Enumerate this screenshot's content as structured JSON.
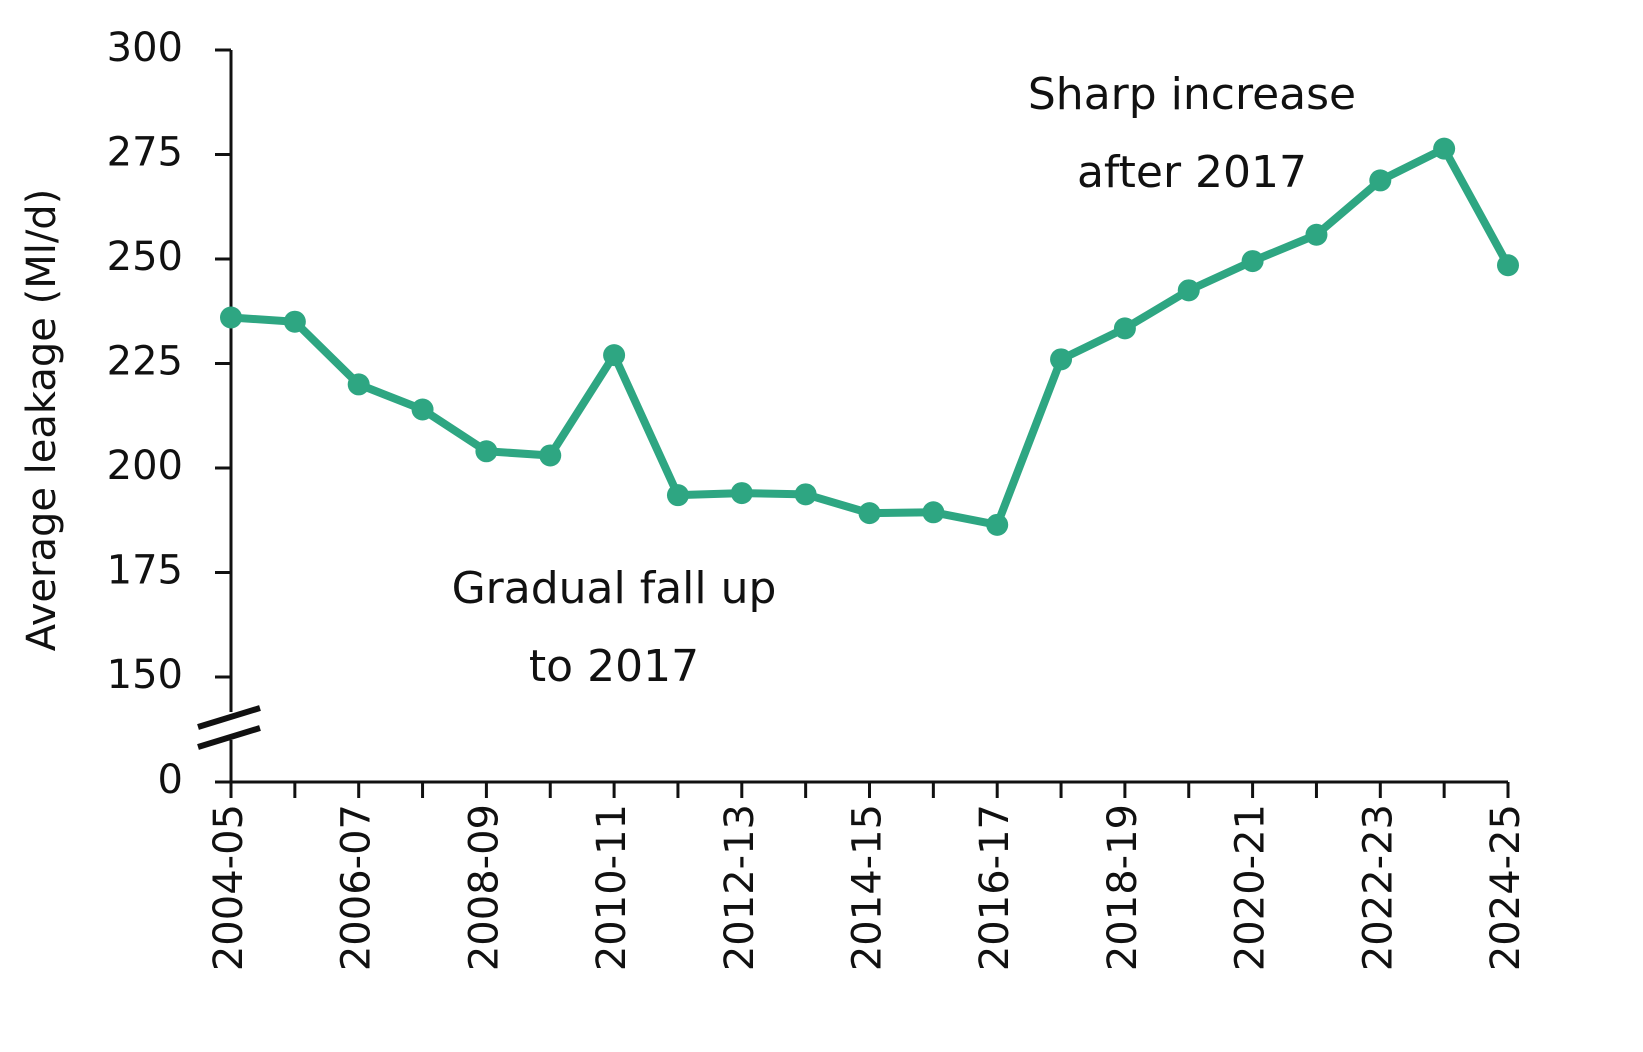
{
  "chart_data": {
    "type": "line",
    "y_label": "Average leakage (Ml/d)",
    "categories": [
      "2004-05",
      null,
      "2006-07",
      null,
      "2008-09",
      null,
      "2010-11",
      null,
      "2012-13",
      null,
      "2014-15",
      null,
      "2016-17",
      null,
      "2018-19",
      null,
      "2020-21",
      null,
      "2022-23",
      null,
      "2024-25"
    ],
    "series": [
      {
        "name": "Average leakage",
        "color": "#2ea682",
        "values": [
          236,
          235,
          220,
          214,
          204,
          203,
          227,
          193.5,
          194,
          193.7,
          189.2,
          189.4,
          186.4,
          226,
          233.4,
          242.5,
          249.5,
          255.8,
          268.8,
          276.4,
          248.5
        ]
      }
    ],
    "ylim": [
      0,
      300
    ],
    "axis_break": [
      0,
      150
    ],
    "yticks": [
      0,
      150,
      175,
      200,
      225,
      250,
      275,
      300
    ],
    "annotations": [
      [
        "Sharp increase",
        "after 2017"
      ],
      [
        "Gradual fall up",
        "to 2017"
      ]
    ]
  }
}
